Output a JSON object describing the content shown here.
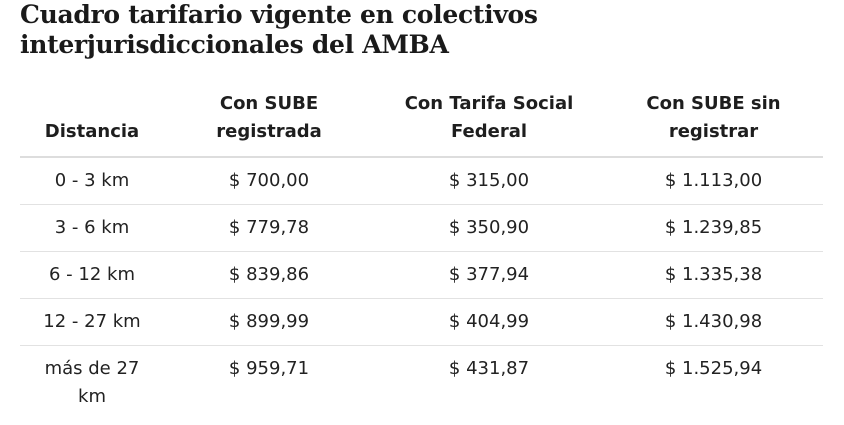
{
  "title": {
    "line1": "Cuadro tarifario vigente en colectivos",
    "line2": "interjurisdiccionales del AMBA"
  },
  "table": {
    "headers": [
      "Distancia",
      "Con SUBE registrada",
      "Con Tarifa Social Federal",
      "Con SUBE sin registrar"
    ],
    "rows": [
      [
        "0 - 3 km",
        "$ 700,00",
        "$ 315,00",
        "$ 1.113,00"
      ],
      [
        "3 - 6 km",
        "$ 779,78",
        "$ 350,90",
        "$ 1.239,85"
      ],
      [
        "6 - 12 km",
        "$ 839,86",
        "$ 377,94",
        "$ 1.335,38"
      ],
      [
        "12 - 27 km",
        "$ 899,99",
        "$ 404,99",
        "$ 1.430,98"
      ],
      [
        "más de 27 km",
        "$ 959,71",
        "$ 431,87",
        "$ 1.525,94"
      ]
    ]
  }
}
